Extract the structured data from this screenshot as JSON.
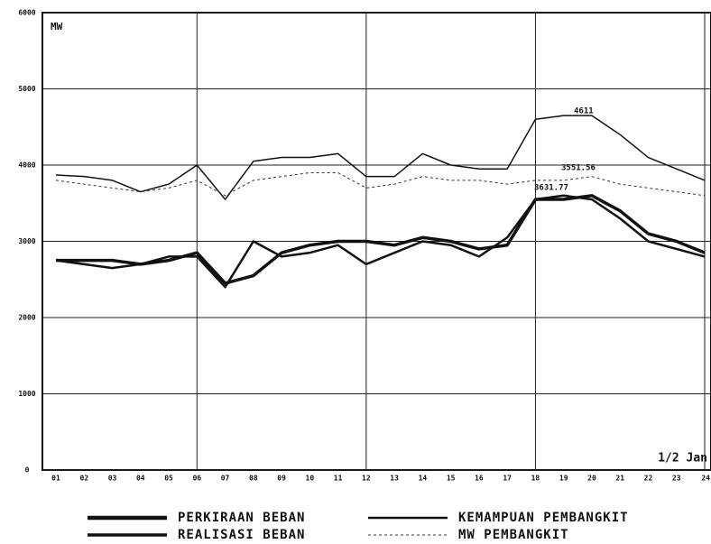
{
  "chart_data": {
    "type": "line",
    "y_label": "MW",
    "annotation": "1/2 Jan",
    "point_labels": [
      "4611",
      "3551.56",
      "3631.77"
    ],
    "categories": [
      "01",
      "02",
      "03",
      "04",
      "05",
      "06",
      "07",
      "08",
      "09",
      "10",
      "11",
      "12",
      "13",
      "14",
      "15",
      "16",
      "17",
      "18",
      "19",
      "20",
      "21",
      "22",
      "23",
      "24"
    ],
    "series": [
      {
        "name": "PERKIRAAN BEBAN",
        "color": "#111111",
        "width": 3.5,
        "dash": false,
        "values": [
          2750,
          2750,
          2750,
          2700,
          2750,
          2850,
          2450,
          2550,
          2850,
          2950,
          3000,
          3000,
          2950,
          3050,
          3000,
          2900,
          2950,
          3550,
          3550,
          3600,
          3400,
          3100,
          3000,
          2850
        ]
      },
      {
        "name": "REALISASI BEBAN",
        "color": "#111111",
        "width": 2.5,
        "dash": false,
        "values": [
          2750,
          2700,
          2650,
          2700,
          2800,
          2800,
          2400,
          3000,
          2800,
          2850,
          2950,
          2700,
          2850,
          3000,
          2950,
          2800,
          3050,
          3550,
          3600,
          3550,
          3300,
          3000,
          2900,
          2800
        ]
      },
      {
        "name": "KEMAMPUAN PEMBANGKIT",
        "color": "#111111",
        "width": 1.5,
        "dash": false,
        "values": [
          3870,
          3850,
          3800,
          3650,
          3750,
          4000,
          3550,
          4050,
          4100,
          4100,
          4150,
          3850,
          3850,
          4150,
          4000,
          3950,
          3950,
          4600,
          4650,
          4650,
          4400,
          4100,
          3950,
          3800
        ]
      },
      {
        "name": "MW PEMBANGKIT",
        "color": "#333333",
        "width": 1,
        "dash": true,
        "values": [
          3800,
          3750,
          3700,
          3650,
          3700,
          3800,
          3600,
          3800,
          3850,
          3900,
          3900,
          3700,
          3750,
          3850,
          3800,
          3800,
          3750,
          3800,
          3800,
          3850,
          3750,
          3700,
          3650,
          3600
        ]
      }
    ],
    "ylim": [
      0,
      6000
    ],
    "yticks": [
      0,
      1000,
      2000,
      3000,
      4000,
      5000,
      6000
    ],
    "grid": true
  }
}
